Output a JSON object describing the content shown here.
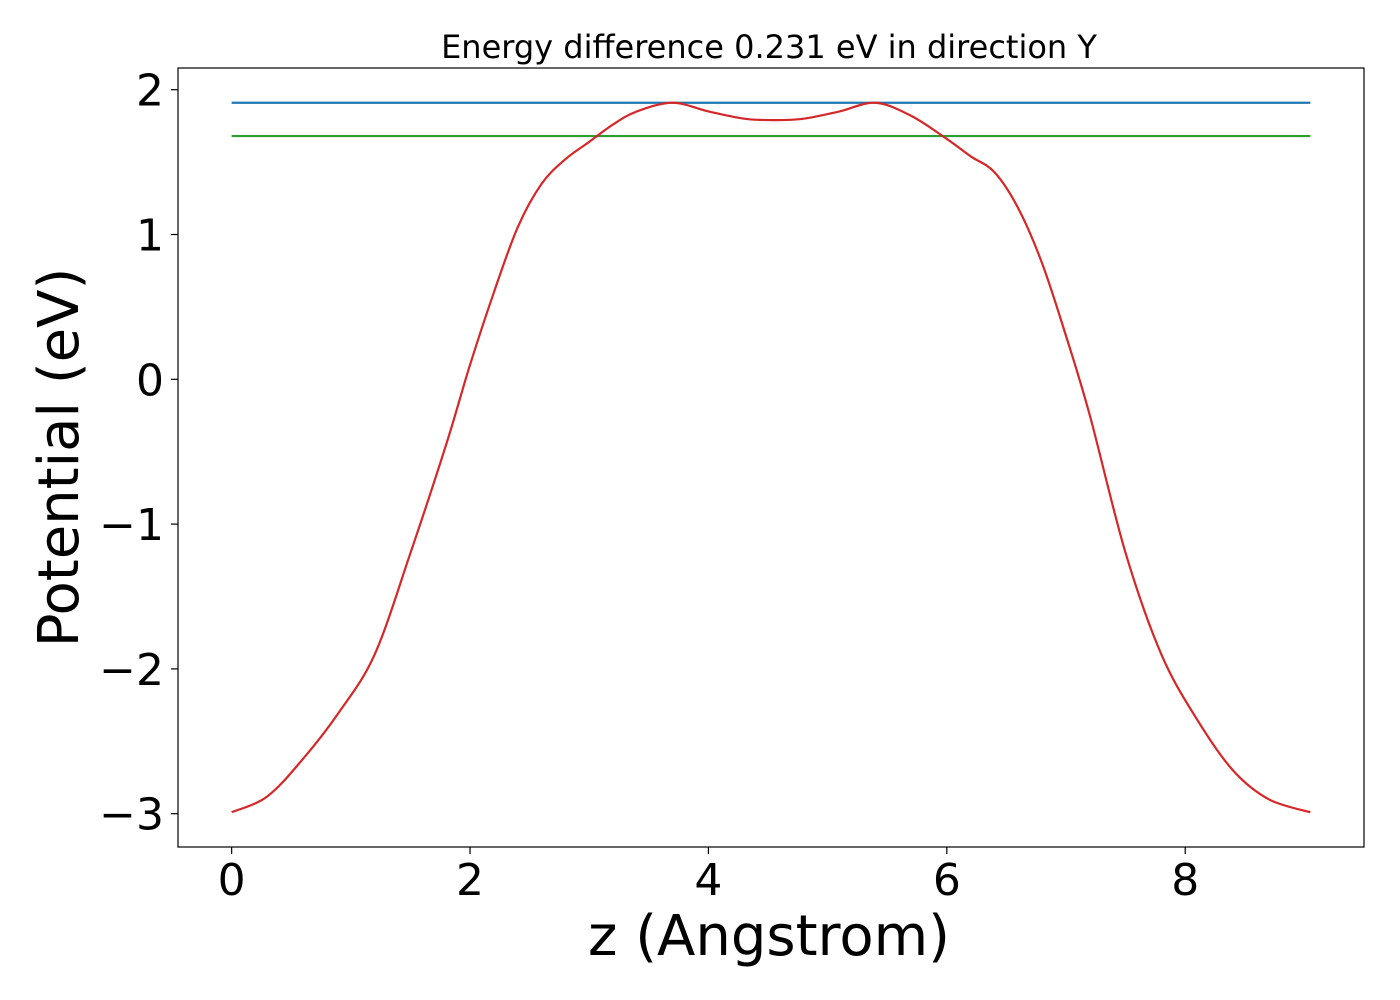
{
  "chart_data": {
    "type": "line",
    "title": "Energy difference 0.231 eV in direction Y",
    "xlabel": "z (Angstrom)",
    "ylabel": "Potential (eV)",
    "xlim": [
      -0.45,
      9.5
    ],
    "ylim": [
      -3.23,
      2.15
    ],
    "xticks": [
      0,
      2,
      4,
      6,
      8
    ],
    "xtick_labels": [
      "0",
      "2",
      "4",
      "6",
      "8"
    ],
    "yticks": [
      -3,
      -2,
      -1,
      0,
      1,
      2
    ],
    "ytick_labels": [
      "−3",
      "−2",
      "−1",
      "0",
      "1",
      "2"
    ],
    "grid": false,
    "series": [
      {
        "color": "#1f77b4",
        "x": [
          0,
          9.05
        ],
        "y": [
          1.91,
          1.91
        ]
      },
      {
        "color": "#2ca02c",
        "x": [
          0,
          9.05
        ],
        "y": [
          1.68,
          1.68
        ]
      },
      {
        "color": "#d62728",
        "x": [
          0,
          0.3,
          0.6,
          0.9,
          1.2,
          1.5,
          1.8,
          2.0,
          2.2,
          2.4,
          2.6,
          2.8,
          3.0,
          3.2,
          3.4,
          3.7,
          4.0,
          4.3,
          4.55,
          4.8,
          5.1,
          5.4,
          5.7,
          6.0,
          6.2,
          6.4,
          6.6,
          6.8,
          7.0,
          7.2,
          7.5,
          7.8,
          8.1,
          8.4,
          8.7,
          9.05
        ],
        "y": [
          -2.99,
          -2.88,
          -2.62,
          -2.3,
          -1.9,
          -1.2,
          -0.45,
          0.1,
          0.6,
          1.05,
          1.35,
          1.52,
          1.64,
          1.76,
          1.85,
          1.91,
          1.85,
          1.8,
          1.79,
          1.8,
          1.85,
          1.91,
          1.82,
          1.66,
          1.54,
          1.43,
          1.18,
          0.8,
          0.3,
          -0.25,
          -1.2,
          -1.9,
          -2.35,
          -2.7,
          -2.9,
          -2.99
        ]
      }
    ]
  }
}
